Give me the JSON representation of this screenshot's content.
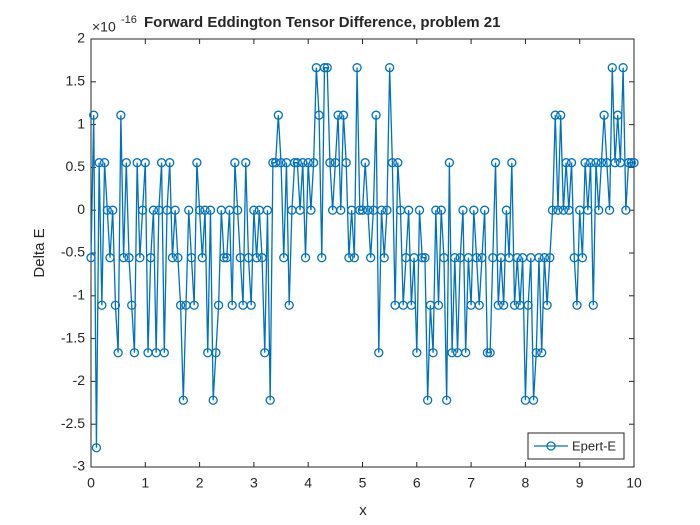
{
  "chart_data": {
    "type": "line",
    "title": "Forward Eddington Tensor Difference, problem 21",
    "y_scale_base": "×10",
    "y_scale_exponent": "-16",
    "xlabel": "x",
    "ylabel": "Delta E",
    "x": [
      0,
      0.05,
      0.1,
      0.15,
      0.2,
      0.25,
      0.3,
      0.35,
      0.4,
      0.45,
      0.5,
      0.55,
      0.6,
      0.65,
      0.7,
      0.75,
      0.8,
      0.85,
      0.9,
      0.95,
      1,
      1.05,
      1.1,
      1.15,
      1.2,
      1.25,
      1.3,
      1.35,
      1.4,
      1.45,
      1.5,
      1.55,
      1.6,
      1.65,
      1.7,
      1.75,
      1.8,
      1.85,
      1.9,
      1.95,
      2,
      2.05,
      2.1,
      2.15,
      2.2,
      2.25,
      2.3,
      2.35,
      2.4,
      2.45,
      2.5,
      2.55,
      2.6,
      2.65,
      2.7,
      2.75,
      2.8,
      2.85,
      2.9,
      2.95,
      3,
      3.05,
      3.1,
      3.15,
      3.2,
      3.25,
      3.3,
      3.35,
      3.4,
      3.45,
      3.5,
      3.55,
      3.6,
      3.65,
      3.7,
      3.75,
      3.8,
      3.85,
      3.9,
      3.95,
      4,
      4.05,
      4.1,
      4.15,
      4.2,
      4.25,
      4.3,
      4.35,
      4.4,
      4.45,
      4.5,
      4.55,
      4.6,
      4.65,
      4.7,
      4.75,
      4.8,
      4.85,
      4.9,
      4.95,
      5,
      5.05,
      5.1,
      5.15,
      5.2,
      5.25,
      5.3,
      5.35,
      5.4,
      5.45,
      5.5,
      5.55,
      5.6,
      5.65,
      5.7,
      5.75,
      5.8,
      5.85,
      5.9,
      5.95,
      6,
      6.05,
      6.1,
      6.15,
      6.2,
      6.25,
      6.3,
      6.35,
      6.4,
      6.45,
      6.5,
      6.55,
      6.6,
      6.65,
      6.7,
      6.75,
      6.8,
      6.85,
      6.9,
      6.95,
      7,
      7.05,
      7.1,
      7.15,
      7.2,
      7.25,
      7.3,
      7.35,
      7.4,
      7.45,
      7.5,
      7.55,
      7.6,
      7.65,
      7.7,
      7.75,
      7.8,
      7.85,
      7.9,
      7.95,
      8,
      8.05,
      8.1,
      8.15,
      8.2,
      8.25,
      8.3,
      8.35,
      8.4,
      8.45,
      8.5,
      8.55,
      8.6,
      8.65,
      8.7,
      8.75,
      8.8,
      8.85,
      8.9,
      8.95,
      9,
      9.05,
      9.1,
      9.15,
      9.2,
      9.25,
      9.3,
      9.35,
      9.4,
      9.45,
      9.5,
      9.55,
      9.6,
      9.65,
      9.7,
      9.75,
      9.8,
      9.85,
      9.9,
      9.95,
      10
    ],
    "series": [
      {
        "name": "Epert-E",
        "color": "#0072BD",
        "values": [
          -0.555,
          1.11,
          -2.775,
          0.555,
          -1.11,
          0.555,
          0,
          -0.555,
          0,
          -1.11,
          -1.665,
          1.11,
          -0.555,
          0.555,
          -0.555,
          -1.11,
          -1.665,
          0.555,
          -0.555,
          0,
          0.555,
          -1.665,
          -0.555,
          0,
          -1.665,
          0,
          0.555,
          -1.665,
          0,
          0.555,
          -0.555,
          0,
          -0.555,
          -1.11,
          -2.22,
          -1.11,
          0,
          -0.555,
          -1.11,
          0.555,
          0,
          -0.555,
          0,
          -1.665,
          0,
          -2.22,
          -1.665,
          -1.11,
          0,
          -0.555,
          -0.555,
          0,
          -1.11,
          0.555,
          0,
          -0.555,
          -1.11,
          0.555,
          -0.555,
          -1.11,
          0,
          -0.555,
          0,
          -0.555,
          -1.665,
          0,
          -2.22,
          0.555,
          0.555,
          1.11,
          0.555,
          -0.555,
          0.555,
          -1.11,
          0,
          0.555,
          0.555,
          0,
          0.555,
          -0.555,
          0.555,
          0,
          0.555,
          1.665,
          1.11,
          -0.555,
          1.665,
          1.665,
          0.555,
          0,
          0.555,
          1.11,
          0,
          1.11,
          0.555,
          -0.555,
          0,
          -0.555,
          1.665,
          0,
          0,
          0.555,
          0,
          -0.555,
          0,
          1.11,
          -1.665,
          0,
          -0.555,
          0,
          1.665,
          0.555,
          -1.11,
          0.555,
          0,
          -1.11,
          -0.555,
          0,
          -1.11,
          -0.555,
          -1.665,
          0,
          -0.555,
          -0.555,
          -2.22,
          -1.11,
          -1.665,
          0,
          -1.11,
          0,
          -0.555,
          -2.22,
          0.555,
          -1.665,
          -0.555,
          -1.665,
          -0.555,
          0,
          -1.665,
          -0.555,
          -1.11,
          0,
          -0.555,
          -1.11,
          -0.555,
          0,
          -1.665,
          -1.665,
          -0.555,
          0.555,
          -1.11,
          -0.555,
          -1.11,
          0,
          -0.555,
          0.555,
          -1.11,
          -0.555,
          -1.11,
          -0.555,
          -2.22,
          -1.11,
          -0.555,
          -2.22,
          -1.665,
          -0.555,
          -1.665,
          -0.555,
          -1.11,
          -0.555,
          0,
          1.11,
          0,
          1.11,
          0,
          0.555,
          0,
          0.555,
          -0.555,
          -1.11,
          0,
          -0.555,
          0.555,
          0,
          0.555,
          -1.11,
          0.555,
          0,
          0.555,
          1.11,
          0.555,
          0,
          1.665,
          0.555,
          1.11,
          0.555,
          1.665,
          0,
          0.555,
          0.555,
          0.555
        ]
      }
    ],
    "xlim": [
      0,
      10
    ],
    "xticks": [
      0,
      1,
      2,
      3,
      4,
      5,
      6,
      7,
      8,
      9,
      10
    ],
    "ylim": [
      -3,
      2
    ],
    "yticks": [
      -3,
      -2.5,
      -2,
      -1.5,
      -1,
      -0.5,
      0,
      0.5,
      1,
      1.5,
      2
    ],
    "grid": false,
    "legend": "lower-right",
    "marker": "circle"
  }
}
